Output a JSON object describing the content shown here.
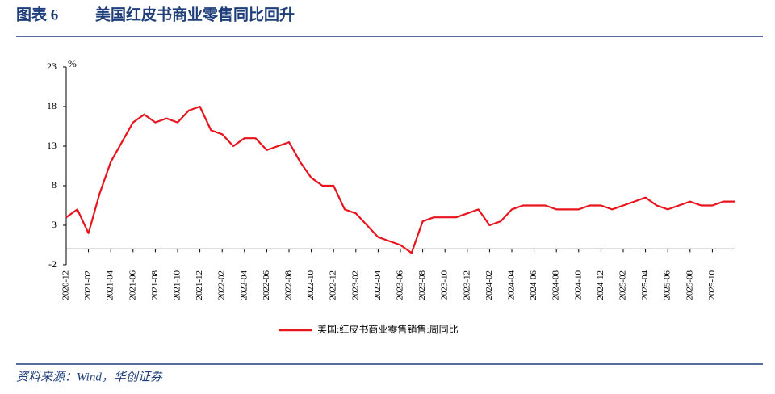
{
  "figure_label": "图表 6",
  "title": "美国红皮书商业零售同比回升",
  "source": "资料来源：Wind，华创证券",
  "chart_data": {
    "type": "line",
    "unit": "%",
    "x": [
      "2020-12",
      "2021-01",
      "2021-02",
      "2021-03",
      "2021-04",
      "2021-05",
      "2021-06",
      "2021-07",
      "2021-08",
      "2021-09",
      "2021-10",
      "2021-11",
      "2021-12",
      "2022-01",
      "2022-02",
      "2022-03",
      "2022-04",
      "2022-05",
      "2022-06",
      "2022-07",
      "2022-08",
      "2022-09",
      "2022-10",
      "2022-11",
      "2022-12",
      "2023-01",
      "2023-02",
      "2023-03",
      "2023-04",
      "2023-05",
      "2023-06",
      "2023-07",
      "2023-08",
      "2023-09",
      "2023-10",
      "2023-11",
      "2023-12",
      "2024-01",
      "2024-02",
      "2024-03",
      "2024-04",
      "2024-05",
      "2024-06",
      "2024-07",
      "2024-08",
      "2024-09",
      "2024-10",
      "2024-11",
      "2024-12",
      "2025-01",
      "2025-02",
      "2025-03",
      "2025-04",
      "2025-05",
      "2025-06",
      "2025-07",
      "2025-08",
      "2025-09",
      "2025-10",
      "2025-11",
      "2025-12"
    ],
    "series": [
      {
        "name": "美国:红皮书商业零售销售:周同比",
        "color": "#e8141e",
        "values": [
          4,
          5,
          2,
          7,
          11,
          13.5,
          16,
          17,
          16,
          16.5,
          16,
          17.5,
          18,
          15,
          14.5,
          13,
          14,
          14,
          12.5,
          13,
          13.5,
          11,
          9,
          8,
          8,
          5,
          4.5,
          3,
          1.5,
          1,
          0.5,
          -0.5,
          3.5,
          4,
          4,
          4,
          4.5,
          5,
          3,
          3.5,
          5,
          5.5,
          5.5,
          5.5,
          5,
          5,
          5,
          5.5,
          5.5,
          5,
          5.5,
          6,
          6.5,
          5.5,
          5,
          5.5,
          6,
          5.5,
          5.5,
          6,
          6
        ]
      }
    ],
    "ylim": [
      -2,
      23
    ],
    "yticks": [
      -2,
      3,
      8,
      13,
      18,
      23
    ],
    "xticks": [
      "2020-12",
      "2021-02",
      "2021-04",
      "2021-06",
      "2021-08",
      "2021-10",
      "2021-12",
      "2022-02",
      "2022-04",
      "2022-06",
      "2022-08",
      "2022-10",
      "2022-12",
      "2023-02",
      "2023-04",
      "2023-06",
      "2023-08",
      "2023-10",
      "2023-12",
      "2024-02",
      "2024-04",
      "2024-06",
      "2024-08",
      "2024-10",
      "2024-12",
      "2025-02",
      "2025-04",
      "2025-06",
      "2025-08",
      "2025-10"
    ],
    "legend": "bottom"
  }
}
